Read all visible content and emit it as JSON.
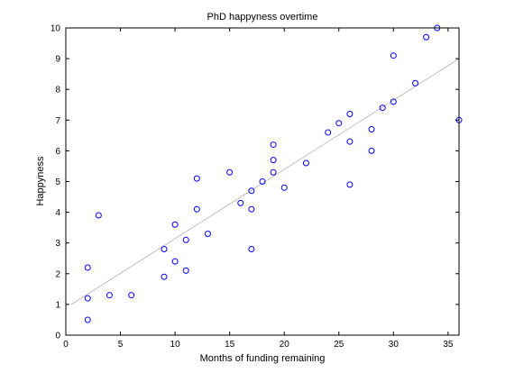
{
  "chart_data": {
    "type": "scatter",
    "title": "PhD happyness overtime",
    "xlabel": "Months of funding remaining",
    "ylabel": "Happyness",
    "xlim": [
      0,
      36
    ],
    "ylim": [
      0,
      10
    ],
    "xticks": [
      0,
      5,
      10,
      15,
      20,
      25,
      30,
      35
    ],
    "yticks": [
      0,
      1,
      2,
      3,
      4,
      5,
      6,
      7,
      8,
      9,
      10
    ],
    "grid": false,
    "marker": "open circle",
    "marker_color": "#0000ff",
    "fit_line_color": "#b3b3b3",
    "fit_line": {
      "x": [
        0.5,
        36
      ],
      "y": [
        1.0,
        9.0
      ]
    },
    "points": [
      {
        "x": 2,
        "y": 0.5
      },
      {
        "x": 2,
        "y": 1.2
      },
      {
        "x": 2,
        "y": 2.2
      },
      {
        "x": 3,
        "y": 3.9
      },
      {
        "x": 4,
        "y": 1.3
      },
      {
        "x": 6,
        "y": 1.3
      },
      {
        "x": 9,
        "y": 1.9
      },
      {
        "x": 9,
        "y": 2.8
      },
      {
        "x": 10,
        "y": 2.4
      },
      {
        "x": 10,
        "y": 3.6
      },
      {
        "x": 11,
        "y": 2.1
      },
      {
        "x": 11,
        "y": 3.1
      },
      {
        "x": 12,
        "y": 4.1
      },
      {
        "x": 12,
        "y": 5.1
      },
      {
        "x": 13,
        "y": 3.3
      },
      {
        "x": 15,
        "y": 5.3
      },
      {
        "x": 16,
        "y": 4.3
      },
      {
        "x": 17,
        "y": 2.8
      },
      {
        "x": 17,
        "y": 4.1
      },
      {
        "x": 17,
        "y": 4.7
      },
      {
        "x": 18,
        "y": 5.0
      },
      {
        "x": 19,
        "y": 5.3
      },
      {
        "x": 19,
        "y": 5.7
      },
      {
        "x": 19,
        "y": 6.2
      },
      {
        "x": 20,
        "y": 4.8
      },
      {
        "x": 22,
        "y": 5.6
      },
      {
        "x": 24,
        "y": 6.6
      },
      {
        "x": 25,
        "y": 6.9
      },
      {
        "x": 26,
        "y": 4.9
      },
      {
        "x": 26,
        "y": 6.3
      },
      {
        "x": 26,
        "y": 7.2
      },
      {
        "x": 28,
        "y": 6.0
      },
      {
        "x": 28,
        "y": 6.7
      },
      {
        "x": 29,
        "y": 7.4
      },
      {
        "x": 30,
        "y": 7.6
      },
      {
        "x": 30,
        "y": 9.1
      },
      {
        "x": 32,
        "y": 8.2
      },
      {
        "x": 33,
        "y": 9.7
      },
      {
        "x": 34,
        "y": 10.0
      },
      {
        "x": 36,
        "y": 7.0
      }
    ]
  }
}
